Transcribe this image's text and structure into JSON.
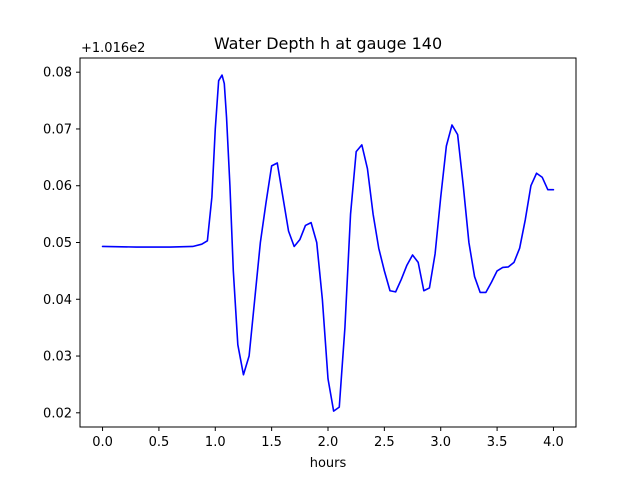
{
  "chart_data": {
    "type": "line",
    "title": "Water Depth h at gauge 140",
    "xlabel": "hours",
    "ylabel": "",
    "y_offset_label": "+1.016e2",
    "xlim": [
      -0.2,
      4.2
    ],
    "ylim": [
      0.0175,
      0.0825
    ],
    "x_ticks": [
      0.0,
      0.5,
      1.0,
      1.5,
      2.0,
      2.5,
      3.0,
      3.5,
      4.0
    ],
    "x_tick_labels": [
      "0.0",
      "0.5",
      "1.0",
      "1.5",
      "2.0",
      "2.5",
      "3.0",
      "3.5",
      "4.0"
    ],
    "y_ticks": [
      0.02,
      0.03,
      0.04,
      0.05,
      0.06,
      0.07,
      0.08
    ],
    "y_tick_labels": [
      "0.02",
      "0.03",
      "0.04",
      "0.05",
      "0.06",
      "0.07",
      "0.08"
    ],
    "grid": false,
    "series": [
      {
        "color": "#0000ff",
        "x": [
          0.0,
          0.3,
          0.6,
          0.8,
          0.88,
          0.93,
          0.97,
          1.0,
          1.03,
          1.06,
          1.08,
          1.1,
          1.13,
          1.16,
          1.2,
          1.25,
          1.3,
          1.35,
          1.4,
          1.45,
          1.5,
          1.55,
          1.6,
          1.65,
          1.7,
          1.75,
          1.8,
          1.85,
          1.9,
          1.95,
          2.0,
          2.05,
          2.1,
          2.15,
          2.2,
          2.25,
          2.3,
          2.35,
          2.4,
          2.45,
          2.5,
          2.55,
          2.6,
          2.65,
          2.7,
          2.75,
          2.8,
          2.85,
          2.9,
          2.95,
          3.0,
          3.05,
          3.1,
          3.15,
          3.2,
          3.25,
          3.3,
          3.35,
          3.4,
          3.45,
          3.5,
          3.55,
          3.6,
          3.65,
          3.7,
          3.75,
          3.8,
          3.85,
          3.9,
          3.95,
          4.0
        ],
        "y": [
          0.0493,
          0.0492,
          0.0492,
          0.0493,
          0.0497,
          0.0503,
          0.058,
          0.07,
          0.0785,
          0.0795,
          0.078,
          0.072,
          0.06,
          0.045,
          0.032,
          0.0267,
          0.03,
          0.04,
          0.05,
          0.057,
          0.0635,
          0.064,
          0.058,
          0.052,
          0.0493,
          0.0505,
          0.053,
          0.0535,
          0.05,
          0.04,
          0.026,
          0.0203,
          0.021,
          0.035,
          0.055,
          0.066,
          0.0672,
          0.063,
          0.055,
          0.049,
          0.045,
          0.0415,
          0.0413,
          0.0435,
          0.046,
          0.0478,
          0.0465,
          0.0415,
          0.042,
          0.048,
          0.058,
          0.067,
          0.0707,
          0.069,
          0.06,
          0.05,
          0.044,
          0.0412,
          0.0412,
          0.043,
          0.045,
          0.0456,
          0.0457,
          0.0465,
          0.049,
          0.054,
          0.06,
          0.0622,
          0.0615,
          0.0593,
          0.0593
        ]
      }
    ]
  }
}
